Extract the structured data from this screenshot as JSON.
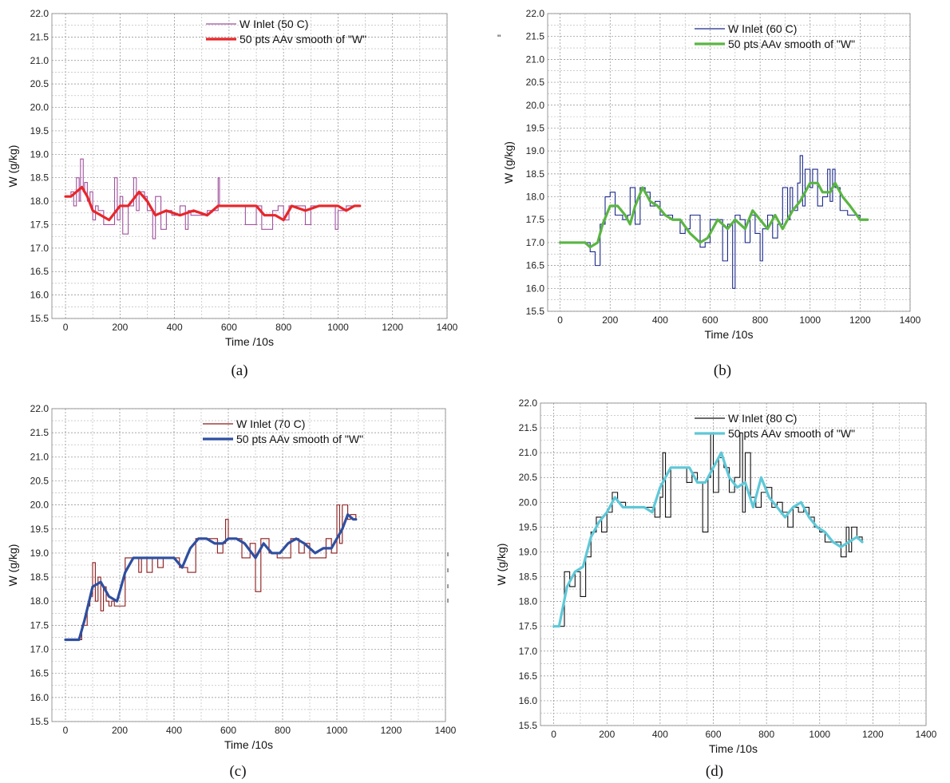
{
  "figure": {
    "stray_marks": [
      "\""
    ]
  },
  "chart_data": [
    {
      "type": "line",
      "panel_label": "(a)",
      "xlabel": "Time /10s",
      "ylabel": "W (g/kg)",
      "xlim": [
        -50,
        1400
      ],
      "ylim": [
        15.5,
        22.0
      ],
      "xticks": [
        0,
        200,
        400,
        600,
        800,
        1000,
        1200,
        1400
      ],
      "yticks": [
        15.5,
        16.0,
        16.5,
        17.0,
        17.5,
        18.0,
        18.5,
        19.0,
        19.5,
        20.0,
        20.5,
        21.0,
        21.5,
        22.0
      ],
      "grid": true,
      "legend_position": "top-center",
      "series": [
        {
          "name": "W Inlet (50   C)",
          "color": "#a0529f",
          "style": "step-thin",
          "x": [
            0,
            20,
            30,
            40,
            50,
            55,
            65,
            70,
            80,
            90,
            100,
            110,
            120,
            140,
            160,
            180,
            190,
            200,
            210,
            230,
            250,
            260,
            270,
            290,
            300,
            320,
            330,
            350,
            370,
            390,
            420,
            440,
            450,
            460,
            480,
            520,
            560,
            565,
            580,
            600,
            640,
            660,
            700,
            720,
            760,
            780,
            800,
            820,
            860,
            880,
            900,
            920,
            960,
            990,
            1000,
            1010,
            1030,
            1050,
            1080
          ],
          "y": [
            18.1,
            18.2,
            17.9,
            18.5,
            18.0,
            18.9,
            18.2,
            18.4,
            18.0,
            18.2,
            17.6,
            17.9,
            17.8,
            17.5,
            17.5,
            18.5,
            17.6,
            18.1,
            17.3,
            17.9,
            18.5,
            17.8,
            18.2,
            18.1,
            17.8,
            17.2,
            18.1,
            17.4,
            17.8,
            17.7,
            17.9,
            17.4,
            17.8,
            17.7,
            17.7,
            17.8,
            18.5,
            17.9,
            17.9,
            17.9,
            17.9,
            17.5,
            17.9,
            17.4,
            17.8,
            17.9,
            17.6,
            17.9,
            17.9,
            17.5,
            17.9,
            17.9,
            17.9,
            17.4,
            17.8,
            17.8,
            17.9,
            17.9,
            17.9
          ]
        },
        {
          "name": "50 pts AAv smooth of \"W\"",
          "color": "#e8262a",
          "style": "thick",
          "x": [
            0,
            20,
            40,
            60,
            80,
            100,
            130,
            160,
            200,
            230,
            270,
            300,
            330,
            370,
            420,
            470,
            520,
            560,
            620,
            700,
            730,
            770,
            800,
            830,
            880,
            930,
            960,
            1000,
            1030,
            1060,
            1080
          ],
          "y": [
            18.1,
            18.1,
            18.2,
            18.3,
            18.1,
            17.8,
            17.7,
            17.6,
            17.9,
            17.9,
            18.2,
            18.0,
            17.7,
            17.8,
            17.7,
            17.8,
            17.7,
            17.9,
            17.9,
            17.9,
            17.7,
            17.7,
            17.6,
            17.9,
            17.8,
            17.9,
            17.9,
            17.9,
            17.8,
            17.9,
            17.9
          ]
        }
      ]
    },
    {
      "type": "line",
      "panel_label": "(b)",
      "xlabel": "Time /10s",
      "ylabel": "W (g/kg)",
      "xlim": [
        -50,
        1400
      ],
      "ylim": [
        15.5,
        22.0
      ],
      "xticks": [
        0,
        200,
        400,
        600,
        800,
        1000,
        1200,
        1400
      ],
      "yticks": [
        15.5,
        16.0,
        16.5,
        17.0,
        17.5,
        18.0,
        18.5,
        19.0,
        19.5,
        20.0,
        20.5,
        21.0,
        21.5,
        22.0
      ],
      "grid": true,
      "legend_position": "top-center",
      "series": [
        {
          "name": "W Inlet (60   C)",
          "color": "#1c2a8a",
          "style": "step-thin",
          "x": [
            0,
            100,
            120,
            140,
            160,
            180,
            200,
            220,
            250,
            270,
            280,
            300,
            320,
            340,
            360,
            380,
            400,
            420,
            450,
            480,
            500,
            520,
            540,
            560,
            580,
            600,
            620,
            650,
            670,
            690,
            700,
            720,
            740,
            760,
            780,
            800,
            810,
            830,
            850,
            870,
            890,
            910,
            920,
            930,
            950,
            960,
            970,
            980,
            1000,
            1010,
            1030,
            1050,
            1070,
            1080,
            1090,
            1100,
            1120,
            1150,
            1200,
            1230
          ],
          "y": [
            17.0,
            17.0,
            16.8,
            16.5,
            17.4,
            18.0,
            18.1,
            17.6,
            17.5,
            17.6,
            18.2,
            17.4,
            18.2,
            18.1,
            17.8,
            17.9,
            17.6,
            17.6,
            17.5,
            17.2,
            17.3,
            17.6,
            17.6,
            16.9,
            17.0,
            17.5,
            17.5,
            16.6,
            17.4,
            16.0,
            17.6,
            17.5,
            17.0,
            17.6,
            17.2,
            16.6,
            17.3,
            17.6,
            17.1,
            17.4,
            18.2,
            17.5,
            18.2,
            17.7,
            18.3,
            18.9,
            17.8,
            18.6,
            18.2,
            18.6,
            17.8,
            18.0,
            18.6,
            17.9,
            18.6,
            18.2,
            17.7,
            17.6,
            17.5,
            17.5
          ]
        },
        {
          "name": "50 pts AAv smooth of \"W\"",
          "color": "#5ab543",
          "style": "thick",
          "x": [
            0,
            100,
            120,
            150,
            170,
            200,
            230,
            260,
            280,
            300,
            330,
            360,
            390,
            420,
            450,
            480,
            520,
            560,
            590,
            630,
            670,
            700,
            740,
            770,
            800,
            830,
            860,
            890,
            930,
            960,
            1000,
            1030,
            1050,
            1080,
            1100,
            1130,
            1160,
            1200,
            1230
          ],
          "y": [
            17.0,
            17.0,
            16.9,
            17.0,
            17.4,
            17.8,
            17.8,
            17.6,
            17.4,
            17.8,
            18.2,
            17.9,
            17.8,
            17.6,
            17.5,
            17.5,
            17.2,
            17.0,
            17.1,
            17.5,
            17.3,
            17.5,
            17.3,
            17.7,
            17.5,
            17.3,
            17.6,
            17.3,
            17.7,
            17.9,
            18.3,
            18.3,
            18.1,
            18.1,
            18.3,
            18.0,
            17.8,
            17.5,
            17.5
          ]
        }
      ]
    },
    {
      "type": "line",
      "panel_label": "(c)",
      "xlabel": "Time /10s",
      "ylabel": "W (g/kg)",
      "xlim": [
        -50,
        1400
      ],
      "ylim": [
        15.5,
        22.0
      ],
      "xticks": [
        0,
        200,
        400,
        600,
        800,
        1000,
        1200,
        1400
      ],
      "yticks": [
        15.5,
        16.0,
        16.5,
        17.0,
        17.5,
        18.0,
        18.5,
        19.0,
        19.5,
        20.0,
        20.5,
        21.0,
        21.5,
        22.0
      ],
      "grid": true,
      "legend_position": "top-center",
      "series": [
        {
          "name": "W Inlet (70   C)",
          "color": "#8b1a1a",
          "style": "step-thin",
          "x": [
            0,
            50,
            60,
            80,
            90,
            100,
            110,
            120,
            130,
            140,
            150,
            160,
            170,
            180,
            200,
            220,
            250,
            270,
            280,
            300,
            320,
            340,
            360,
            380,
            400,
            420,
            450,
            480,
            500,
            530,
            560,
            580,
            590,
            600,
            620,
            650,
            680,
            700,
            720,
            750,
            780,
            800,
            830,
            860,
            880,
            900,
            930,
            960,
            980,
            1000,
            1010,
            1020,
            1040,
            1050,
            1070
          ],
          "y": [
            17.2,
            17.2,
            17.5,
            17.9,
            18.1,
            18.8,
            18.0,
            18.5,
            17.8,
            18.3,
            18.0,
            17.9,
            18.0,
            17.9,
            17.9,
            18.9,
            18.9,
            18.6,
            18.9,
            18.6,
            18.9,
            18.7,
            18.9,
            18.9,
            18.9,
            18.7,
            18.6,
            19.3,
            19.3,
            19.3,
            19.0,
            19.2,
            19.7,
            19.3,
            19.3,
            18.9,
            19.2,
            18.2,
            19.3,
            19.0,
            18.9,
            18.9,
            19.3,
            19.0,
            19.2,
            18.9,
            18.9,
            19.3,
            19.0,
            20.0,
            19.2,
            20.0,
            19.7,
            19.8,
            19.7
          ]
        },
        {
          "name": "50 pts AAv smooth of \"W\"",
          "color": "#2e4fa0",
          "style": "thick",
          "x": [
            0,
            50,
            70,
            100,
            130,
            160,
            190,
            220,
            250,
            280,
            320,
            360,
            400,
            430,
            460,
            490,
            520,
            550,
            580,
            600,
            630,
            660,
            700,
            730,
            760,
            790,
            820,
            850,
            880,
            920,
            950,
            980,
            1000,
            1020,
            1040,
            1060,
            1070
          ],
          "y": [
            17.2,
            17.2,
            17.6,
            18.3,
            18.4,
            18.1,
            18.0,
            18.6,
            18.9,
            18.9,
            18.9,
            18.9,
            18.9,
            18.7,
            19.1,
            19.3,
            19.3,
            19.2,
            19.2,
            19.3,
            19.3,
            19.2,
            18.9,
            19.2,
            19.0,
            19.0,
            19.2,
            19.3,
            19.2,
            19.0,
            19.1,
            19.1,
            19.3,
            19.5,
            19.8,
            19.7,
            19.7
          ]
        }
      ]
    },
    {
      "type": "line",
      "panel_label": "(d)",
      "xlabel": "Time /10s",
      "ylabel": "W (g/kg)",
      "xlim": [
        -50,
        1400
      ],
      "ylim": [
        15.5,
        22.0
      ],
      "xticks": [
        0,
        200,
        400,
        600,
        800,
        1000,
        1200,
        1400
      ],
      "yticks": [
        15.5,
        16.0,
        16.5,
        17.0,
        17.5,
        18.0,
        18.5,
        19.0,
        19.5,
        20.0,
        20.5,
        21.0,
        21.5,
        22.0
      ],
      "grid": true,
      "legend_position": "top-center",
      "series": [
        {
          "name": "W Inlet (80   C)",
          "color": "#111111",
          "style": "step-thin",
          "x": [
            0,
            20,
            40,
            60,
            80,
            100,
            120,
            140,
            160,
            180,
            200,
            220,
            240,
            270,
            300,
            340,
            380,
            400,
            410,
            420,
            440,
            460,
            480,
            500,
            520,
            540,
            560,
            580,
            590,
            600,
            620,
            640,
            660,
            680,
            700,
            710,
            720,
            740,
            760,
            780,
            800,
            820,
            840,
            860,
            880,
            900,
            920,
            940,
            960,
            980,
            1000,
            1020,
            1060,
            1080,
            1100,
            1110,
            1120,
            1140,
            1160
          ],
          "y": [
            17.5,
            17.5,
            18.6,
            18.3,
            18.6,
            18.1,
            18.9,
            19.4,
            19.7,
            19.4,
            19.8,
            20.2,
            20.0,
            19.9,
            19.9,
            19.9,
            19.7,
            20.1,
            21.0,
            19.7,
            20.7,
            20.7,
            20.7,
            20.4,
            20.6,
            20.4,
            19.4,
            20.5,
            21.4,
            20.2,
            20.9,
            20.7,
            20.2,
            20.5,
            21.4,
            19.8,
            21.0,
            20.1,
            19.9,
            20.2,
            20.3,
            19.9,
            20.0,
            19.8,
            19.5,
            19.9,
            19.8,
            19.9,
            19.7,
            19.5,
            19.4,
            19.2,
            19.2,
            18.9,
            19.5,
            19.0,
            19.5,
            19.3,
            19.2
          ]
        },
        {
          "name": "50 pts AAv smooth of \"W\"",
          "color": "#5ec8d8",
          "style": "thick",
          "x": [
            0,
            20,
            50,
            80,
            110,
            140,
            170,
            200,
            230,
            260,
            300,
            340,
            370,
            400,
            440,
            480,
            510,
            540,
            570,
            600,
            630,
            660,
            690,
            720,
            750,
            780,
            810,
            840,
            870,
            900,
            930,
            960,
            990,
            1020,
            1050,
            1080,
            1110,
            1140,
            1160
          ],
          "y": [
            17.5,
            17.5,
            18.3,
            18.6,
            18.7,
            19.3,
            19.6,
            19.8,
            20.1,
            19.9,
            19.9,
            19.9,
            19.8,
            20.3,
            20.7,
            20.7,
            20.7,
            20.4,
            20.4,
            20.7,
            21.0,
            20.5,
            20.3,
            20.4,
            19.9,
            20.5,
            20.1,
            19.9,
            19.7,
            19.9,
            20.0,
            19.7,
            19.5,
            19.4,
            19.2,
            19.1,
            19.2,
            19.3,
            19.2
          ]
        }
      ]
    }
  ]
}
